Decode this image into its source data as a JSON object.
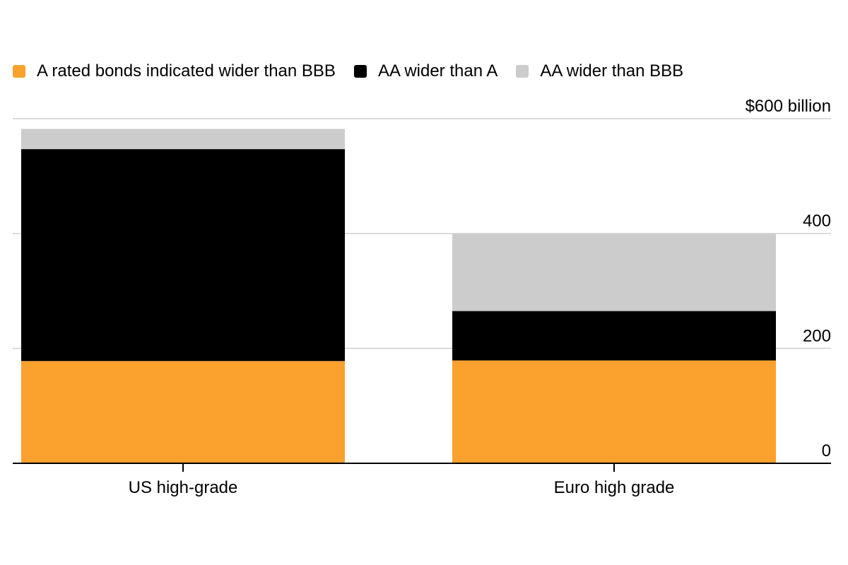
{
  "chart_data": {
    "type": "bar",
    "stacked": true,
    "categories": [
      "US high-grade",
      "Euro high grade"
    ],
    "series": [
      {
        "name": "A rated bonds indicated wider than BBB",
        "color": "#fba12d",
        "values": [
          178,
          179
        ]
      },
      {
        "name": "AA wider than A",
        "color": "#000000",
        "values": [
          369,
          86
        ]
      },
      {
        "name": "AA wider than BBB",
        "color": "#cccccc",
        "values": [
          35,
          134
        ]
      }
    ],
    "y_ticks": [
      {
        "value": 0,
        "label": "0"
      },
      {
        "value": 200,
        "label": "200"
      },
      {
        "value": 400,
        "label": "400"
      },
      {
        "value": 600,
        "label": "$600 billion"
      }
    ],
    "ylim": [
      0,
      600
    ],
    "grid": true,
    "legend_position": "top-left",
    "y_axis_side": "right"
  }
}
